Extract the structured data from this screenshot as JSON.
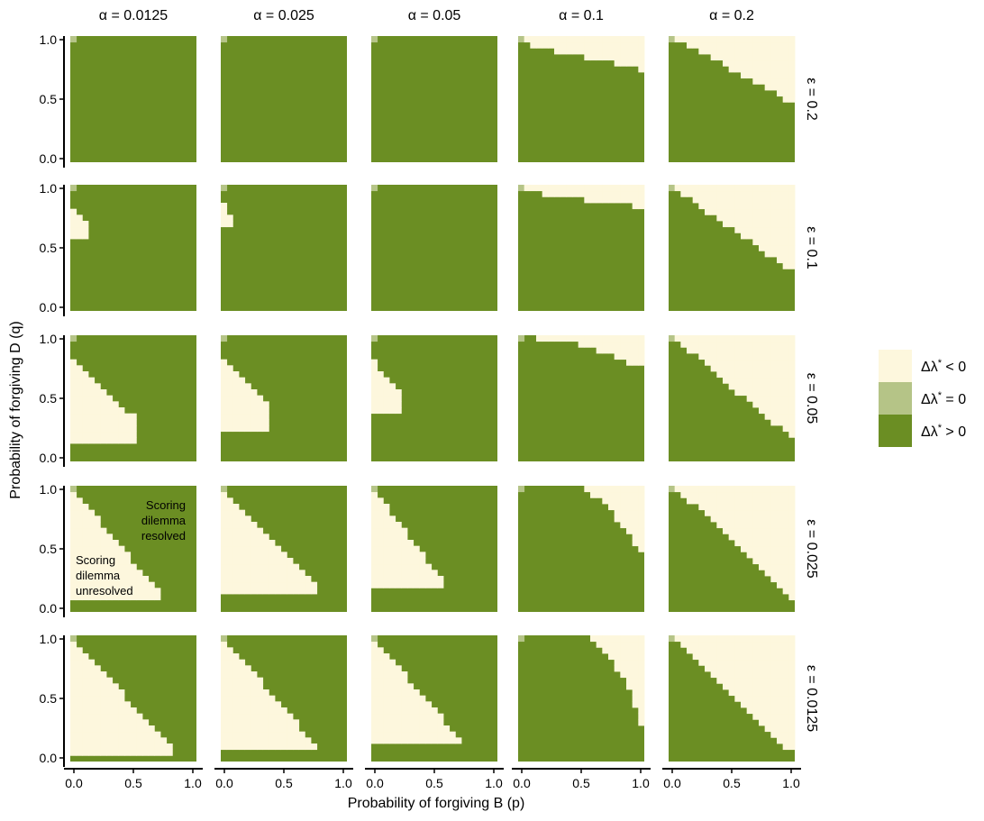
{
  "chart_data": {
    "type": "heatmap",
    "xlabel": "Probability of forgiving B (p)",
    "ylabel": "Probability of forgiving D (q)",
    "xlim": [
      0,
      1
    ],
    "ylim": [
      0,
      1
    ],
    "x_ticks": [
      "0.0",
      "0.5",
      "1.0"
    ],
    "y_ticks": [
      "0.0",
      "0.5",
      "1.0"
    ],
    "grid_cells_per_axis": 21,
    "column_labels": [
      "α = 0.0125",
      "α = 0.025",
      "α = 0.05",
      "α = 0.1",
      "α = 0.2"
    ],
    "row_labels": [
      "ε = 0.2",
      "ε = 0.1",
      "ε = 0.05",
      "ε = 0.025",
      "ε = 0.0125"
    ],
    "colors": {
      "negative": "#fdf7dd",
      "zero": "#b5c487",
      "positive": "#6b8e23"
    },
    "legend": {
      "placement": "right",
      "items": [
        {
          "key": "negative",
          "label_main": "Δλ",
          "label_sup": "*",
          "label_rest": " < 0"
        },
        {
          "key": "zero",
          "label_main": "Δλ",
          "label_sup": "*",
          "label_rest": " = 0"
        },
        {
          "key": "positive",
          "label_main": "Δλ",
          "label_sup": "*",
          "label_rest": " > 0"
        }
      ]
    },
    "annotations": {
      "resolved": [
        "Scoring",
        "dilemma",
        "resolved"
      ],
      "unresolved": [
        "Scoring",
        "dilemma",
        "unresolved"
      ]
    },
    "zero_cell": [
      0.0,
      1.0
    ],
    "panels": [
      [
        {
          "shape": "none"
        },
        {
          "shape": "none"
        },
        {
          "shape": "none"
        },
        {
          "shape": "boundary",
          "p": [
            0,
            0.1,
            0.2,
            0.3,
            0.4,
            0.5,
            0.6,
            0.7,
            0.8,
            0.9,
            1.0
          ],
          "q": [
            1.0,
            0.93,
            0.9,
            0.88,
            0.86,
            0.84,
            0.82,
            0.8,
            0.78,
            0.76,
            0.72
          ]
        },
        {
          "shape": "boundary",
          "p": [
            0,
            0.1,
            0.2,
            0.3,
            0.4,
            0.5,
            0.6,
            0.7,
            0.8,
            0.9,
            1.0
          ],
          "q": [
            1.0,
            0.96,
            0.9,
            0.85,
            0.79,
            0.73,
            0.68,
            0.62,
            0.57,
            0.51,
            0.46
          ]
        }
      ],
      [
        {
          "shape": "region",
          "p": [
            0,
            0.15
          ],
          "q": [
            0.55,
            0.85
          ]
        },
        {
          "shape": "region",
          "p": [
            0,
            0.1
          ],
          "q": [
            0.65,
            0.9
          ]
        },
        {
          "shape": "none"
        },
        {
          "shape": "boundary",
          "p": [
            0,
            0.2,
            0.4,
            0.6,
            0.8,
            1.0
          ],
          "q": [
            1.0,
            0.93,
            0.9,
            0.87,
            0.85,
            0.82
          ]
        },
        {
          "shape": "boundary",
          "p": [
            0,
            0.1,
            0.2,
            0.3,
            0.4,
            0.5,
            0.6,
            0.7,
            0.8,
            0.9,
            1.0
          ],
          "q": [
            1.0,
            0.94,
            0.86,
            0.79,
            0.72,
            0.65,
            0.58,
            0.51,
            0.44,
            0.37,
            0.3
          ]
        }
      ],
      [
        {
          "shape": "region",
          "p": [
            0,
            0.5
          ],
          "q": [
            0.15,
            0.8
          ]
        },
        {
          "shape": "region",
          "p": [
            0,
            0.4
          ],
          "q": [
            0.25,
            0.8
          ]
        },
        {
          "shape": "region",
          "p": [
            0,
            0.25
          ],
          "q": [
            0.4,
            0.8
          ]
        },
        {
          "shape": "boundary",
          "p": [
            0,
            0.2,
            0.4,
            0.5,
            0.6,
            0.7,
            0.8,
            0.9,
            1.0
          ],
          "q": [
            1.0,
            0.97,
            0.95,
            0.92,
            0.89,
            0.85,
            0.81,
            0.77,
            0.73
          ]
        },
        {
          "shape": "boundary",
          "p": [
            0,
            0.1,
            0.2,
            0.3,
            0.4,
            0.5,
            0.6,
            0.7,
            0.8,
            0.9,
            1.0
          ],
          "q": [
            1.0,
            0.93,
            0.85,
            0.76,
            0.68,
            0.59,
            0.5,
            0.42,
            0.33,
            0.25,
            0.2
          ]
        }
      ],
      [
        {
          "shape": "triangle",
          "p_max": 0.75,
          "q_min": 0.1
        },
        {
          "shape": "triangle",
          "p_max": 0.8,
          "q_min": 0.15
        },
        {
          "shape": "triangle",
          "p_max": 0.6,
          "q_min": 0.2
        },
        {
          "shape": "boundary",
          "p": [
            0.5,
            0.6,
            0.7,
            0.8,
            0.9,
            1.0
          ],
          "q": [
            1.0,
            0.92,
            0.84,
            0.72,
            0.58,
            0.45
          ]
        },
        {
          "shape": "boundary",
          "p": [
            0,
            0.1,
            0.2,
            0.3,
            0.4,
            0.5,
            0.6,
            0.7,
            0.8,
            0.9,
            1.0
          ],
          "q": [
            1.0,
            0.93,
            0.85,
            0.76,
            0.66,
            0.56,
            0.46,
            0.36,
            0.26,
            0.16,
            0.1
          ]
        }
      ],
      [
        {
          "shape": "triangle",
          "p_max": 0.85,
          "q_min": 0.05
        },
        {
          "shape": "triangle",
          "p_max": 0.8,
          "q_min": 0.08
        },
        {
          "shape": "triangle",
          "p_max": 0.75,
          "q_min": 0.12
        },
        {
          "shape": "boundary",
          "p": [
            0.55,
            0.65,
            0.75,
            0.85,
            0.95,
            1.0
          ],
          "q": [
            1.0,
            0.9,
            0.78,
            0.62,
            0.4,
            0.15
          ]
        },
        {
          "shape": "boundary",
          "p": [
            0,
            0.1,
            0.2,
            0.3,
            0.4,
            0.5,
            0.6,
            0.7,
            0.8,
            0.9,
            1.0
          ],
          "q": [
            1.0,
            0.93,
            0.84,
            0.74,
            0.64,
            0.54,
            0.44,
            0.34,
            0.24,
            0.14,
            0.06
          ]
        }
      ]
    ]
  }
}
